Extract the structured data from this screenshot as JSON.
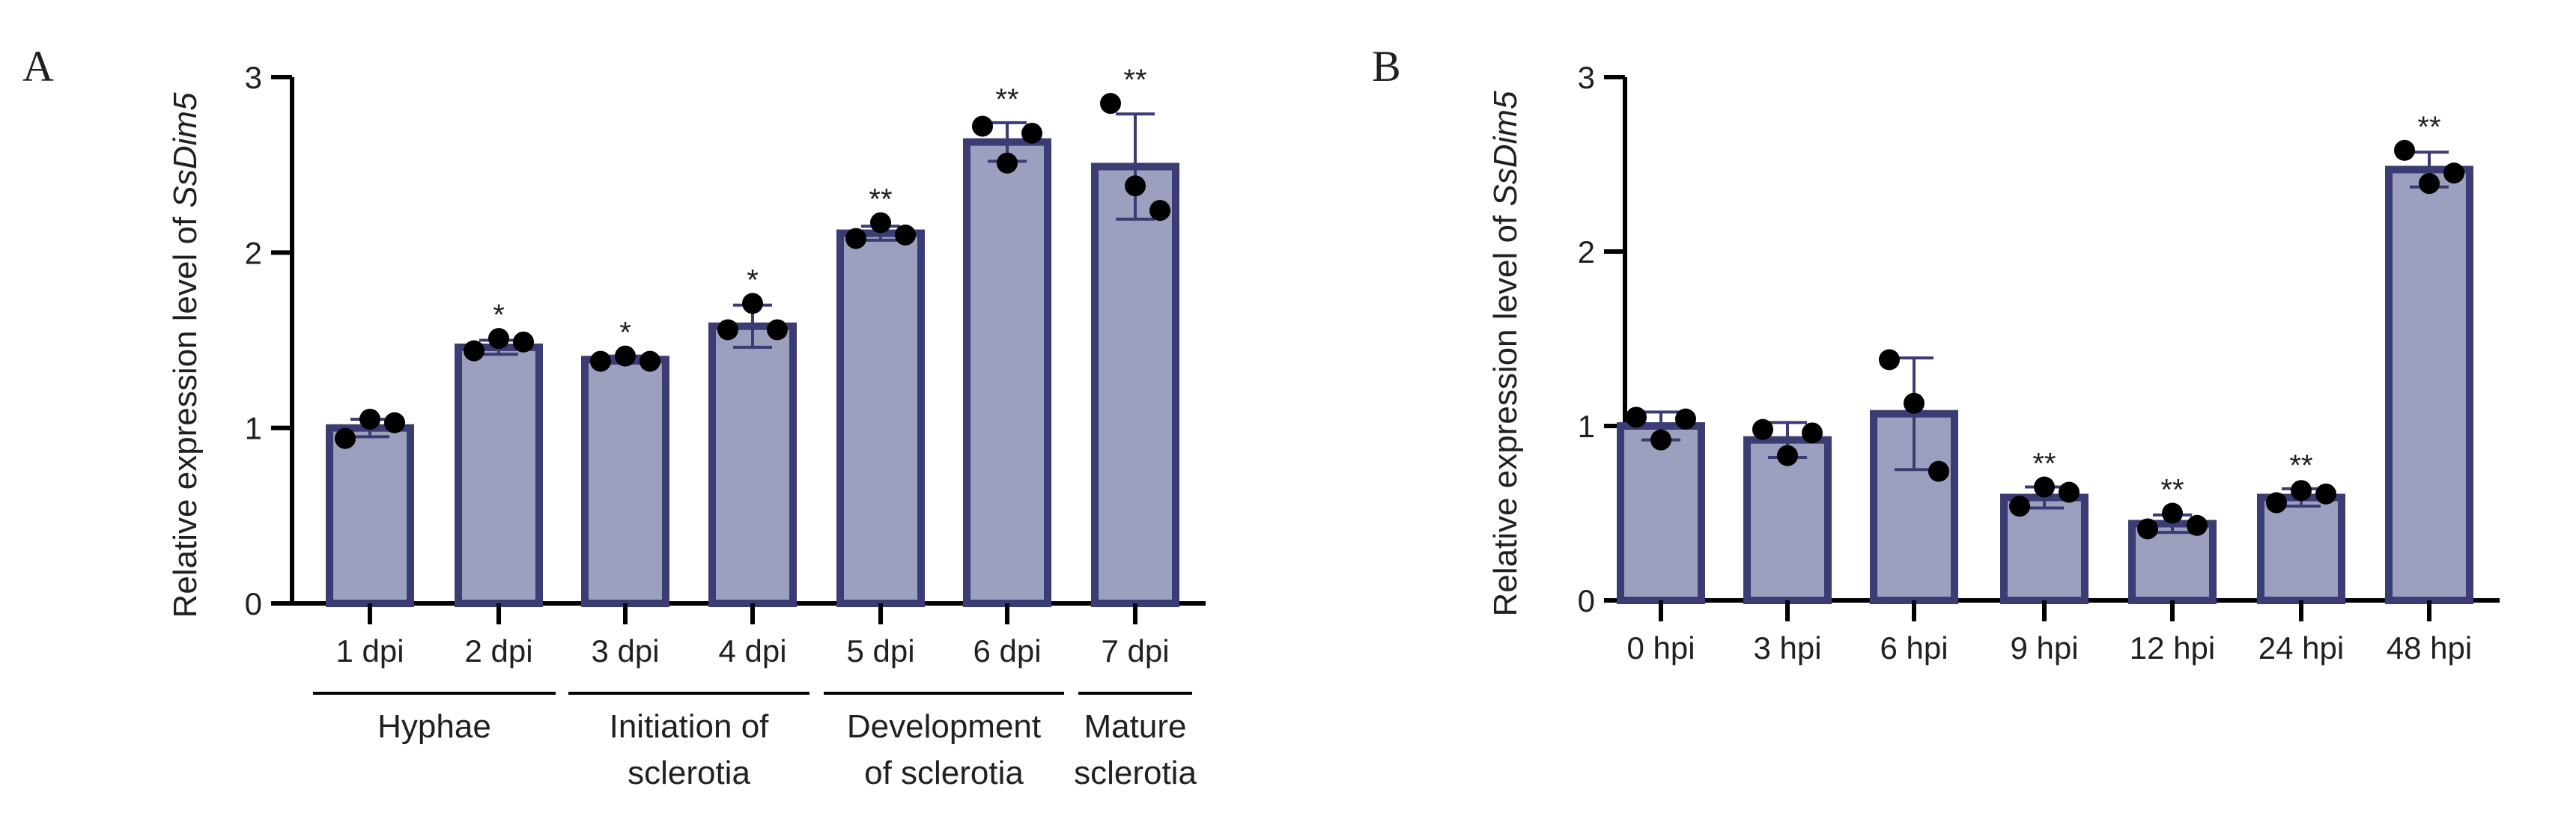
{
  "colors": {
    "bar_fill": "#9c9fbd",
    "bar_edge": "#3b3c73",
    "error_bar": "#3b3c73",
    "point": "#000000",
    "axis": "#000000",
    "text": "#231f20"
  },
  "chart_data": [
    {
      "panel": "A",
      "type": "bar",
      "ylabel_prefix": "Relative expression level of ",
      "ylabel_gene": "SsDim5",
      "ylim": [
        0,
        3
      ],
      "yticks": [
        "0",
        "1",
        "2",
        "3"
      ],
      "categories": [
        "1 dpi",
        "2 dpi",
        "3 dpi",
        "4 dpi",
        "5 dpi",
        "6 dpi",
        "7 dpi"
      ],
      "values": [
        1.0,
        1.46,
        1.39,
        1.58,
        2.11,
        2.63,
        2.49
      ],
      "errors": [
        0.05,
        0.04,
        0.02,
        0.12,
        0.04,
        0.11,
        0.3
      ],
      "points": [
        [
          0.94,
          1.05,
          1.03
        ],
        [
          1.44,
          1.51,
          1.49
        ],
        [
          1.38,
          1.41,
          1.38
        ],
        [
          1.56,
          1.71,
          1.56
        ],
        [
          2.08,
          2.17,
          2.1
        ],
        [
          2.72,
          2.51,
          2.68
        ],
        [
          2.85,
          2.38,
          2.24
        ]
      ],
      "significance": [
        "",
        "*",
        "*",
        "*",
        "**",
        "**",
        "**"
      ],
      "groups": [
        {
          "lines": [
            "Hyphae"
          ],
          "from": 0,
          "to": 1
        },
        {
          "lines": [
            "Initiation of",
            "sclerotia"
          ],
          "from": 2,
          "to": 3
        },
        {
          "lines": [
            "Development",
            "of sclerotia"
          ],
          "from": 4,
          "to": 5
        },
        {
          "lines": [
            "Mature",
            "sclerotia"
          ],
          "from": 6,
          "to": 6
        }
      ]
    },
    {
      "panel": "B",
      "type": "bar",
      "ylabel_prefix": "Relative expression level of ",
      "ylabel_gene": "SsDim5",
      "ylim": [
        0,
        3
      ],
      "yticks": [
        "0",
        "1",
        "2",
        "3"
      ],
      "categories": [
        "0 hpi",
        "3 hpi",
        "6 hpi",
        "9 hpi",
        "12 hpi",
        "24 hpi",
        "48 hpi"
      ],
      "values": [
        1.0,
        0.92,
        1.07,
        0.59,
        0.44,
        0.59,
        2.47
      ],
      "errors": [
        0.08,
        0.1,
        0.32,
        0.06,
        0.05,
        0.05,
        0.1
      ],
      "points": [
        [
          1.05,
          0.92,
          1.04
        ],
        [
          0.98,
          0.83,
          0.96
        ],
        [
          1.38,
          1.13,
          0.74
        ],
        [
          0.54,
          0.65,
          0.62
        ],
        [
          0.41,
          0.5,
          0.43
        ],
        [
          0.56,
          0.63,
          0.61
        ],
        [
          2.58,
          2.39,
          2.45
        ]
      ],
      "significance": [
        "",
        "",
        "",
        "**",
        "**",
        "**",
        "**"
      ],
      "groups": []
    }
  ]
}
